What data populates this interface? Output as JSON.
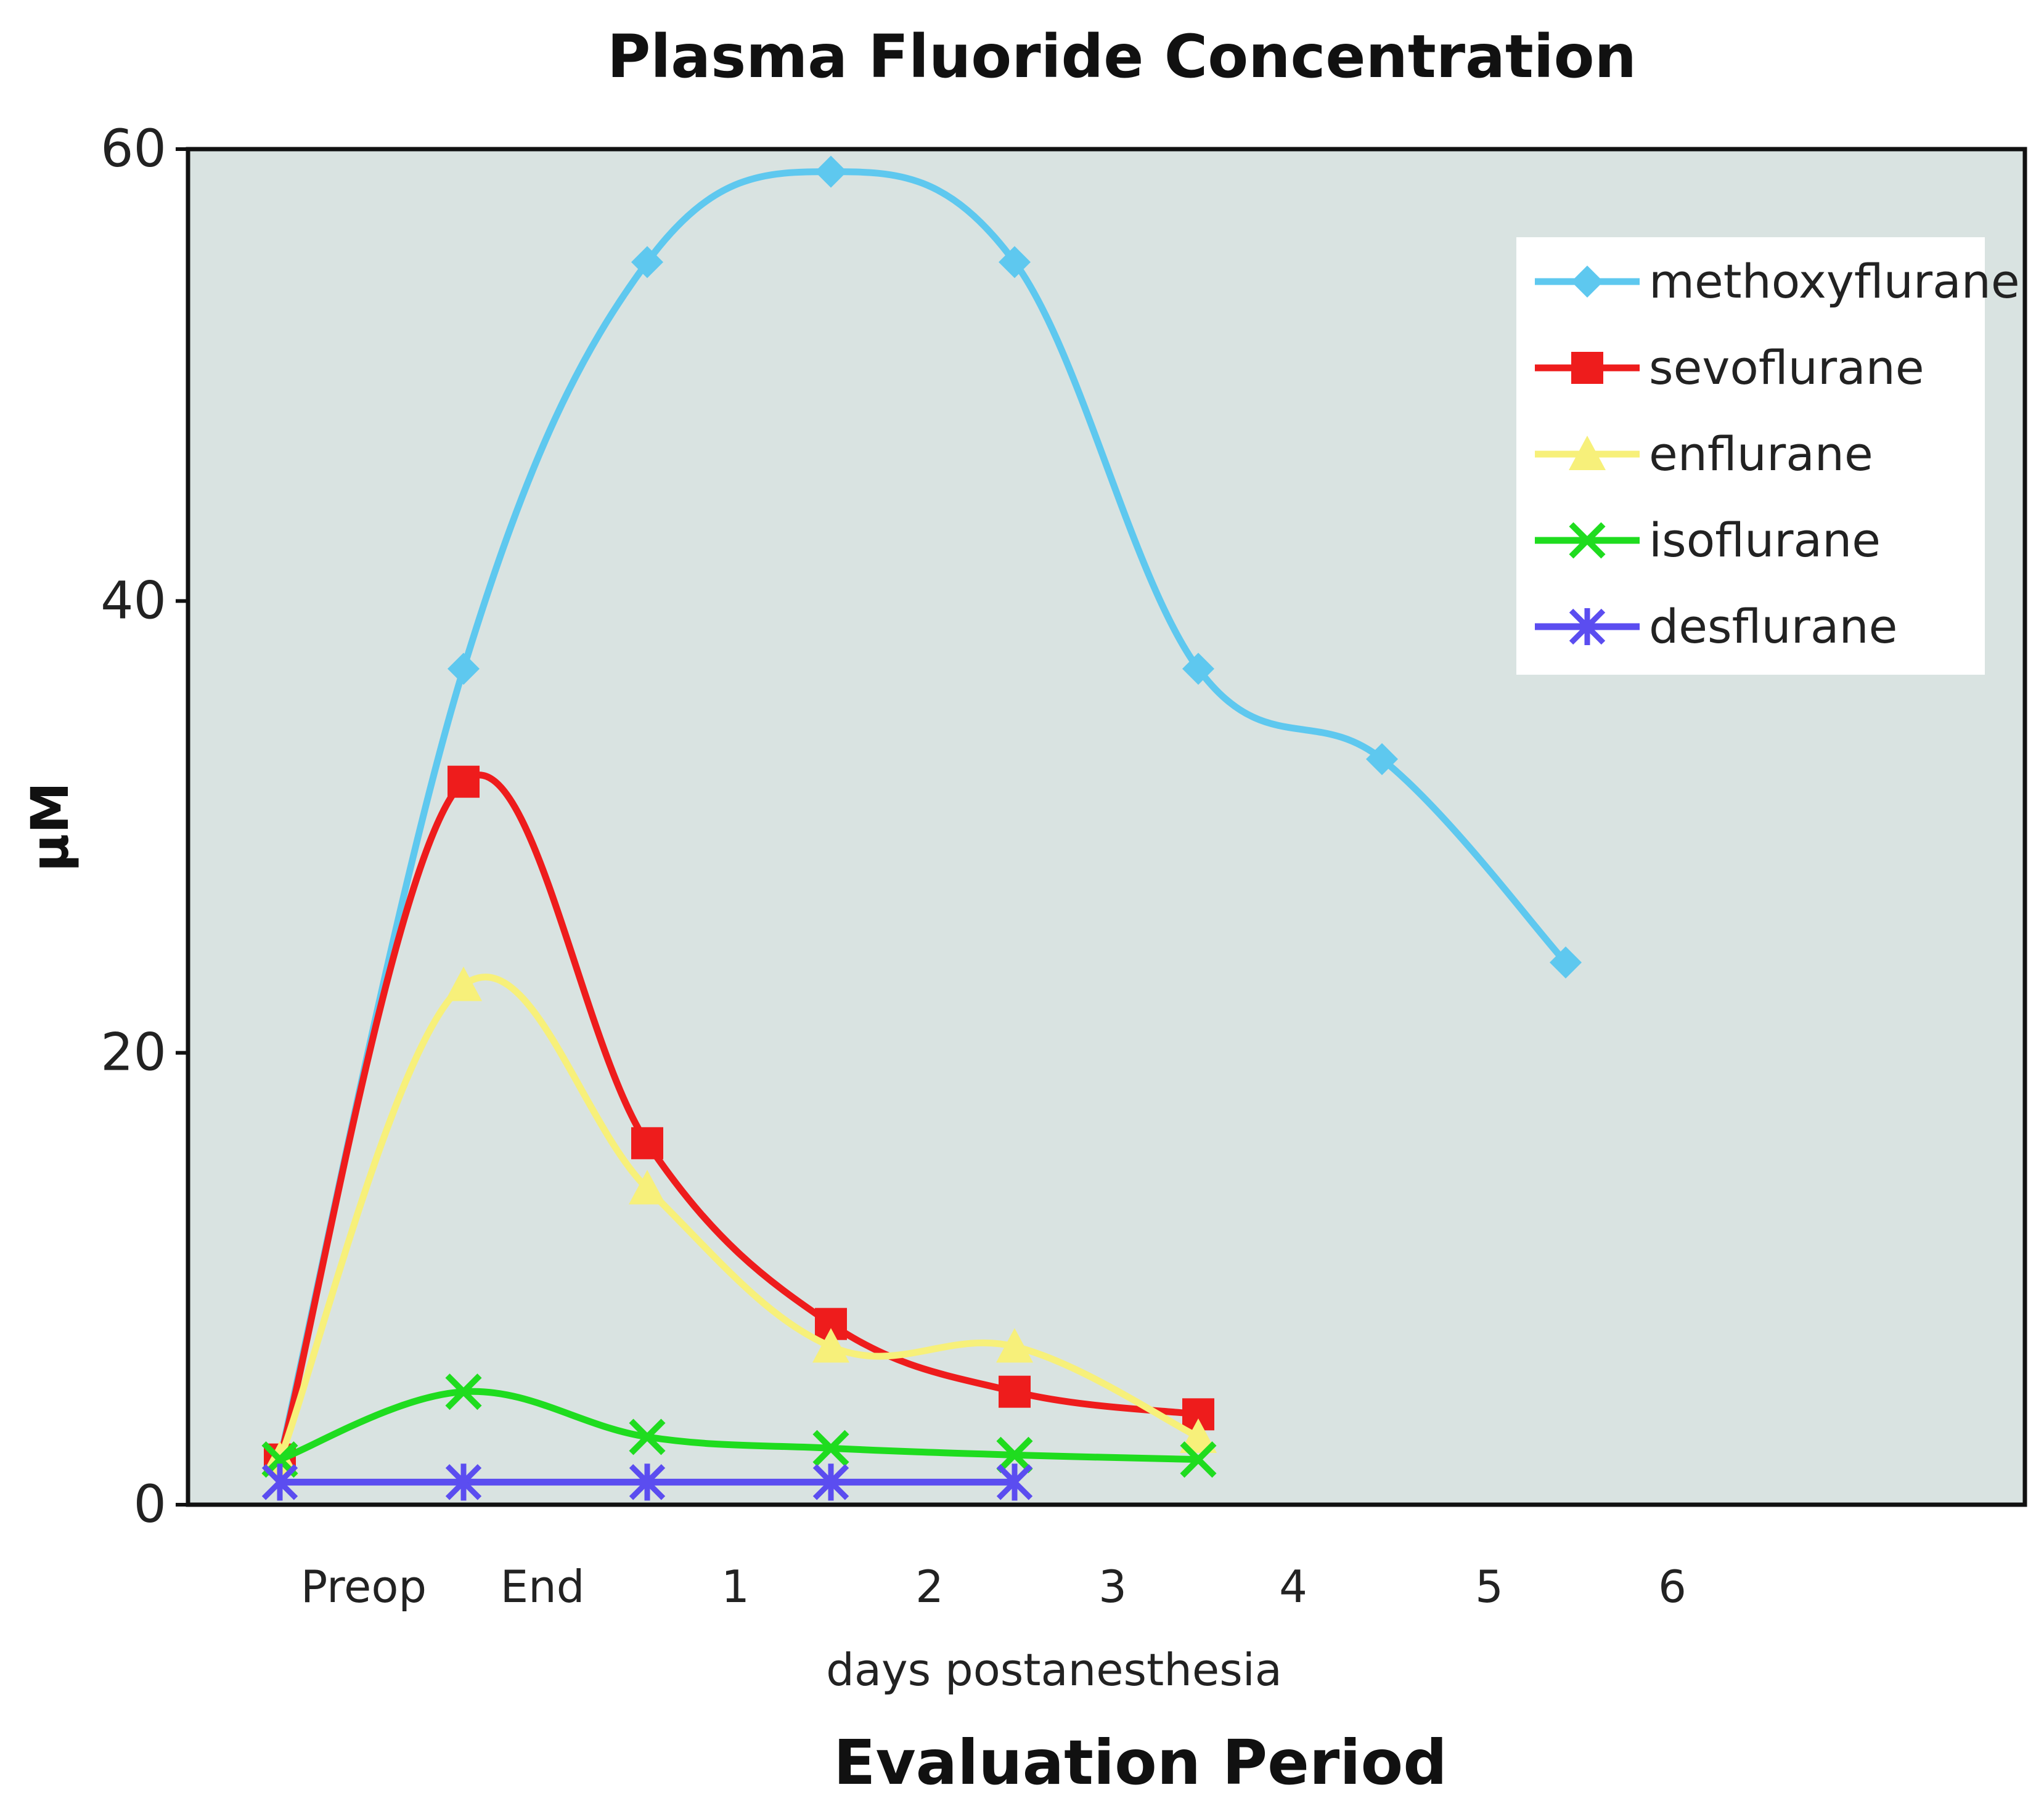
{
  "chart_data": {
    "type": "line",
    "title": "Plasma Fluoride Concentration",
    "xlabel": "Evaluation Period",
    "x_sublabel": "days postanesthesia",
    "ylabel": "μM",
    "ylim": [
      0,
      60
    ],
    "yticks": [
      0,
      20,
      40,
      60
    ],
    "categories": [
      "Preop",
      "End",
      "1",
      "2",
      "3",
      "4",
      "5",
      "6"
    ],
    "grid": false,
    "legend_position": "top-right",
    "background_color": "#d9e3e1",
    "series": [
      {
        "name": "methoxyflurane",
        "color": "#5ec8ef",
        "marker": "diamond",
        "values": [
          2,
          37,
          55,
          59,
          55,
          37,
          33,
          24
        ]
      },
      {
        "name": "sevoflurane",
        "color": "#ee1c1c",
        "marker": "square",
        "values": [
          2,
          32,
          16,
          8,
          5,
          4,
          null,
          null
        ]
      },
      {
        "name": "enflurane",
        "color": "#f7f07a",
        "marker": "triangle",
        "values": [
          2,
          23,
          14,
          7,
          7,
          3,
          null,
          null
        ]
      },
      {
        "name": "isoflurane",
        "color": "#1fdc1f",
        "marker": "x",
        "values": [
          2,
          5,
          3,
          2.5,
          2.2,
          2,
          null,
          null
        ]
      },
      {
        "name": "desflurane",
        "color": "#5b4df0",
        "marker": "star",
        "values": [
          1,
          1,
          1,
          1,
          1,
          null,
          null,
          null
        ]
      }
    ]
  }
}
